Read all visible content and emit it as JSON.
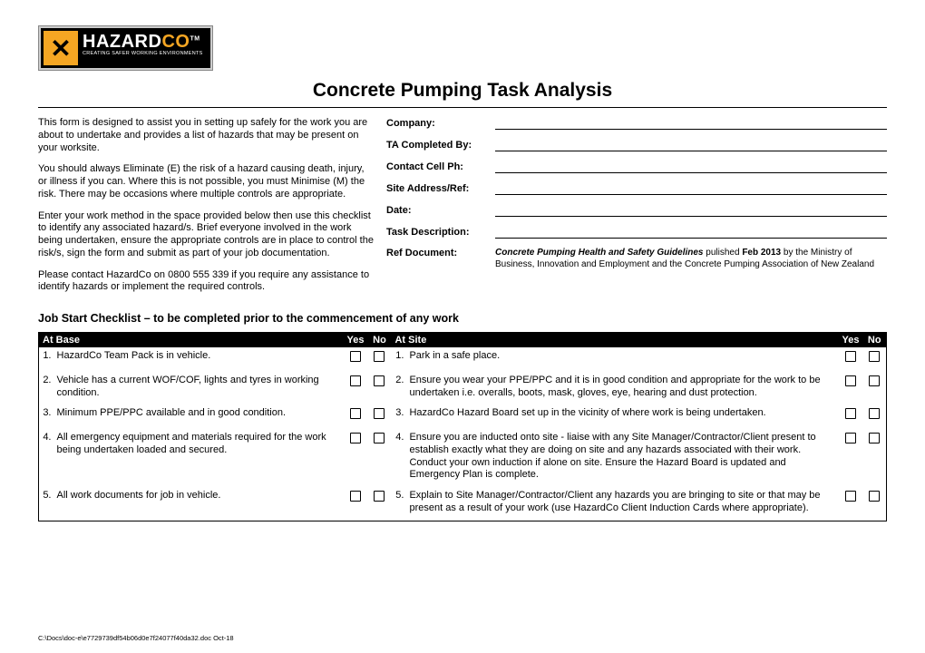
{
  "logo": {
    "brand_part1": "HAZARD",
    "brand_part2": "CO",
    "tagline": "CREATING SAFER WORKING ENVIRONMENTS",
    "tm": "TM"
  },
  "title": "Concrete Pumping Task Analysis",
  "intro": {
    "p1": "This form is designed to assist you in setting up safely for the work you are about to undertake and provides a list of hazards that may be present on your worksite.",
    "p2": "You should always Eliminate (E) the risk of a hazard causing death, injury, or illness if you can.  Where this is not possible, you must Minimise (M) the risk. There may be occasions where multiple controls are appropriate.",
    "p3": "Enter your work method in the space provided below then use this checklist to identify any associated hazard/s.  Brief everyone involved in the work being undertaken, ensure the appropriate controls are in place to control the risk/s, sign the form and submit as part of your job documentation.",
    "p4": "Please contact HazardCo on 0800 555 339 if you require any assistance to identify hazards or implement the required controls."
  },
  "fields": {
    "company": "Company:",
    "completed_by": "TA Completed By:",
    "cell": "Contact Cell Ph:",
    "site": "Site Address/Ref:",
    "date": "Date:",
    "task_desc": "Task Description:",
    "ref_doc": "Ref Document:"
  },
  "ref_doc_text": {
    "italic": "Concrete Pumping Health and Safety Guidelines",
    "rest1": " pulished ",
    "bold": "Feb 2013",
    "rest2": " by  the Ministry of Business, Innovation and Employment and the Concrete Pumping Association of New Zealand"
  },
  "checklist_title": "Job Start Checklist – to be completed prior to the commencement of any work",
  "headers": {
    "at_base": "At Base",
    "at_site": "At Site",
    "yes": "Yes",
    "no": "No"
  },
  "rows": [
    {
      "ln": "1.",
      "lt": "HazardCo Team Pack is in vehicle.",
      "rn": "1.",
      "rt": "Park in a safe place."
    },
    {
      "ln": "2.",
      "lt": "Vehicle has a current WOF/COF, lights and tyres in working condition.",
      "rn": "2.",
      "rt": "Ensure you wear your PPE/PPC and it is in good condition and appropriate for the work to be undertaken i.e. overalls, boots, mask, gloves, eye, hearing and dust protection."
    },
    {
      "ln": "3.",
      "lt": "Minimum PPE/PPC available and in good condition.",
      "rn": "3.",
      "rt": "HazardCo Hazard Board set up in the vicinity of where work is being undertaken."
    },
    {
      "ln": "4.",
      "lt": "All emergency equipment and materials required for the work being undertaken loaded and secured.",
      "rn": "4.",
      "rt": "Ensure you are inducted onto site - liaise with any Site Manager/Contractor/Client present to establish exactly what they are doing on site and any hazards associated with their work. Conduct your own induction if alone on site. Ensure the Hazard Board is updated and Emergency Plan is complete."
    },
    {
      "ln": "5.",
      "lt": "All work documents for job in vehicle.",
      "rn": "5.",
      "rt": "Explain to Site Manager/Contractor/Client any hazards you are bringing to site or that may be present as a result of your work (use HazardCo Client Induction Cards where appropriate)."
    }
  ],
  "footer": "C:\\Docs\\doc-e\\e7729739df54b06d0e7f24077f40da32.doc  Oct-18"
}
